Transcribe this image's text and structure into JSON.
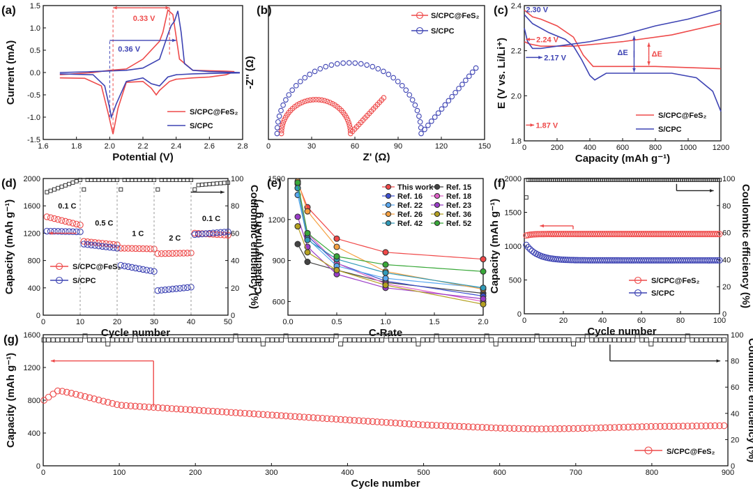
{
  "colors": {
    "red": "#ee4a4a",
    "blue": "#3d43b3",
    "black": "#222222"
  },
  "chart_data": [
    {
      "id": "a",
      "type": "line",
      "panel_label": "(a)",
      "xlabel": "Potential (V)",
      "ylabel": "Current (mA)",
      "xlim": [
        1.6,
        2.8
      ],
      "ylim": [
        -1.5,
        1.5
      ],
      "xticks": [
        1.6,
        1.8,
        2.0,
        2.2,
        2.4,
        2.6,
        2.8
      ],
      "yticks": [
        -1.5,
        -1.0,
        -0.5,
        0.0,
        0.5,
        1.0,
        1.5
      ],
      "annotations": [
        {
          "text": "0.33 V",
          "color": "red"
        },
        {
          "text": "0.36 V",
          "color": "blue"
        }
      ],
      "series": [
        {
          "name": "S/CPC@FeS₂",
          "color": "red",
          "x": [
            1.7,
            1.85,
            1.95,
            1.99,
            2.02,
            2.05,
            2.1,
            2.2,
            2.25,
            2.28,
            2.3,
            2.36,
            2.4,
            2.5,
            2.6,
            2.7,
            2.75,
            2.7,
            2.5,
            2.42,
            2.38,
            2.35,
            2.32,
            2.3,
            2.2,
            2.1,
            2.0,
            1.9,
            1.7
          ],
          "y": [
            -0.12,
            -0.13,
            -0.3,
            -0.9,
            -1.38,
            -0.8,
            -0.22,
            -0.2,
            -0.35,
            -0.5,
            -0.4,
            -0.2,
            -0.15,
            -0.12,
            -0.1,
            -0.05,
            0.02,
            0.03,
            0.05,
            0.3,
            1.3,
            1.4,
            0.9,
            0.7,
            0.3,
            0.08,
            0.05,
            0.0,
            -0.05
          ]
        },
        {
          "name": "S/CPC",
          "color": "blue",
          "x": [
            1.7,
            1.9,
            1.97,
            2.0,
            2.01,
            2.04,
            2.1,
            2.2,
            2.25,
            2.3,
            2.35,
            2.4,
            2.5,
            2.6,
            2.78,
            2.78,
            2.6,
            2.5,
            2.45,
            2.43,
            2.41,
            2.39,
            2.37,
            2.35,
            2.3,
            2.2,
            2.1,
            1.9,
            1.7
          ],
          "y": [
            -0.03,
            -0.05,
            -0.3,
            -0.8,
            -1.0,
            -0.7,
            -0.2,
            -0.12,
            -0.25,
            -0.3,
            -0.1,
            -0.05,
            -0.03,
            -0.02,
            -0.01,
            0.0,
            0.02,
            0.05,
            0.2,
            0.9,
            1.38,
            1.15,
            1.05,
            0.85,
            0.3,
            0.1,
            0.05,
            0.02,
            0.0
          ]
        }
      ]
    },
    {
      "id": "b",
      "type": "scatter",
      "panel_label": "(b)",
      "xlabel": "Z' (Ω)",
      "ylabel": "-Z'' (Ω)",
      "xlim": [
        0,
        150
      ],
      "xticks": [
        0,
        30,
        60,
        90,
        120,
        150
      ],
      "series": [
        {
          "name": "S/CPC@FeS₂",
          "color": "red",
          "arc_center": 33,
          "arc_radius": 24,
          "tail_end": [
            80,
            28
          ]
        },
        {
          "name": "S/CPC",
          "color": "blue",
          "arc_center": 56,
          "arc_radius": 50,
          "tail_end": [
            144,
            48
          ]
        }
      ]
    },
    {
      "id": "c",
      "type": "line",
      "panel_label": "(c)",
      "xlabel": "Capacity (mAh g⁻¹)",
      "ylabel": "E (V vs. Li/Li⁺)",
      "xlim": [
        0,
        1200
      ],
      "ylim": [
        1.8,
        2.4
      ],
      "xticks": [
        0,
        200,
        400,
        600,
        800,
        1000,
        1200
      ],
      "yticks": [
        1.8,
        2.0,
        2.2,
        2.4
      ],
      "annotations": [
        {
          "text": "2.30 V",
          "color": "blue"
        },
        {
          "text": "2.24 V",
          "color": "red"
        },
        {
          "text": "2.17 V",
          "color": "blue"
        },
        {
          "text": "1.87 V",
          "color": "red"
        },
        {
          "text": "ΔE",
          "color": "blue"
        },
        {
          "text": "ΔE",
          "color": "red"
        }
      ],
      "series": [
        {
          "name": "S/CPC@FeS₂",
          "color": "red",
          "discharge": {
            "x": [
              0,
              50,
              100,
              200,
              300,
              360,
              420,
              500,
              800,
              1200
            ],
            "y": [
              2.38,
              2.35,
              2.34,
              2.31,
              2.26,
              2.18,
              2.13,
              2.13,
              2.13,
              2.12
            ]
          },
          "charge": {
            "x": [
              0,
              30,
              100,
              300,
              600,
              900,
              1200
            ],
            "y": [
              2.24,
              2.23,
              2.22,
              2.22,
              2.24,
              2.27,
              2.32
            ]
          }
        },
        {
          "name": "S/CPC",
          "color": "blue",
          "discharge": {
            "x": [
              0,
              50,
              150,
              250,
              300,
              350,
              400,
              430,
              500,
              700,
              900,
              1050,
              1150,
              1200
            ],
            "y": [
              2.36,
              2.32,
              2.28,
              2.25,
              2.22,
              2.16,
              2.09,
              2.07,
              2.1,
              2.1,
              2.1,
              2.08,
              2.02,
              1.93
            ]
          },
          "charge": {
            "x": [
              0,
              20,
              50,
              100,
              200,
              400,
              600,
              800,
              1000,
              1200
            ],
            "y": [
              2.3,
              2.24,
              2.21,
              2.21,
              2.22,
              2.24,
              2.27,
              2.31,
              2.34,
              2.38
            ]
          }
        }
      ]
    },
    {
      "id": "d",
      "type": "scatter",
      "panel_label": "(d)",
      "xlabel": "Cycle number",
      "ylabel": "Capacity (mAh g⁻¹)",
      "y2label": "Coulombic efficiency (%)",
      "xlim": [
        0,
        50
      ],
      "ylim": [
        0,
        2000
      ],
      "y2lim": [
        0,
        100
      ],
      "xticks": [
        0,
        10,
        20,
        30,
        40,
        50
      ],
      "yticks": [
        0,
        400,
        800,
        1200,
        1600,
        2000
      ],
      "y2ticks": [
        0,
        20,
        40,
        60,
        80,
        100
      ],
      "rate_labels": [
        "0.1 C",
        "0.5 C",
        "1 C",
        "2 C",
        "0.1 C"
      ],
      "series": [
        {
          "name": "S/CPC@FeS₂",
          "color": "red",
          "segments": [
            [
              1,
              10,
              1440,
              1320
            ],
            [
              11,
              20,
              1080,
              1030
            ],
            [
              21,
              30,
              980,
              970
            ],
            [
              31,
              40,
              900,
              910
            ],
            [
              41,
              50,
              1200,
              1170
            ]
          ]
        },
        {
          "name": "S/CPC",
          "color": "blue",
          "segments": [
            [
              1,
              10,
              1230,
              1220
            ],
            [
              11,
              20,
              1040,
              980
            ],
            [
              21,
              30,
              730,
              640
            ],
            [
              31,
              40,
              360,
              410
            ],
            [
              41,
              50,
              1180,
              1220
            ]
          ]
        },
        {
          "name": "Coulombic efficiency",
          "color": "black",
          "segments": [
            [
              1,
              10,
              90,
              99
            ],
            [
              11,
              20,
              99,
              99
            ],
            [
              21,
              30,
              99,
              99
            ],
            [
              31,
              40,
              99,
              99
            ],
            [
              41,
              50,
              95,
              97
            ]
          ]
        }
      ]
    },
    {
      "id": "e",
      "type": "line",
      "panel_label": "(e)",
      "xlabel": "C-Rate",
      "ylabel": "Capacity (mAh g⁻¹)",
      "xlim": [
        0,
        2.0
      ],
      "ylim": [
        500,
        1500
      ],
      "xticks": [
        0.0,
        0.5,
        1.0,
        1.5,
        2.0
      ],
      "yticks": [
        600,
        900,
        1200,
        1500
      ],
      "x": [
        0.1,
        0.2,
        0.5,
        1.0,
        2.0
      ],
      "series": [
        {
          "name": "This work",
          "color": "#f04848",
          "values": [
            1470,
            1290,
            1060,
            960,
            910
          ]
        },
        {
          "name": "Ref. 15",
          "color": "#444444",
          "values": [
            1020,
            890,
            830,
            740,
            660
          ]
        },
        {
          "name": "Ref. 16",
          "color": "#3c4fd0",
          "values": [
            1460,
            1080,
            880,
            750,
            640
          ]
        },
        {
          "name": "Ref. 18",
          "color": "#e060c8",
          "values": [
            1430,
            1100,
            880,
            730,
            600
          ]
        },
        {
          "name": "Ref. 22",
          "color": "#5aa8f0",
          "values": [
            1380,
            1060,
            860,
            770,
            700
          ]
        },
        {
          "name": "Ref. 23",
          "color": "#9a3cc8",
          "values": [
            1220,
            1000,
            800,
            700,
            620
          ]
        },
        {
          "name": "Ref. 26",
          "color": "#f5a040",
          "values": [
            1480,
            1260,
            1000,
            820,
            690
          ]
        },
        {
          "name": "Ref. 36",
          "color": "#b4a020",
          "values": [
            1150,
            960,
            830,
            720,
            580
          ]
        },
        {
          "name": "Ref. 42",
          "color": "#309ab8",
          "values": [
            1430,
            1050,
            910,
            810,
            700
          ]
        },
        {
          "name": "Ref. 52",
          "color": "#38a838",
          "values": [
            1470,
            1100,
            930,
            870,
            820
          ]
        }
      ]
    },
    {
      "id": "f",
      "type": "scatter",
      "panel_label": "(f)",
      "xlabel": "Cycle number",
      "ylabel": "Capacity (mAh g⁻¹)",
      "y2label": "Coulombic efficiency (%)",
      "xlim": [
        0,
        100
      ],
      "ylim": [
        0,
        2000
      ],
      "y2lim": [
        0,
        100
      ],
      "xticks": [
        0,
        20,
        40,
        60,
        80,
        100
      ],
      "yticks": [
        0,
        500,
        1000,
        1500,
        2000
      ],
      "y2ticks": [
        0,
        20,
        40,
        60,
        80,
        100
      ],
      "series": [
        {
          "name": "S/CPC@FeS₂",
          "color": "red",
          "start": 1150,
          "level": 1180
        },
        {
          "name": "S/CPC",
          "color": "blue",
          "start": 1060,
          "level": 790
        },
        {
          "name": "Coulombic efficiency",
          "color": "black",
          "start": 86,
          "level": 99
        }
      ]
    },
    {
      "id": "g",
      "type": "scatter",
      "panel_label": "(g)",
      "xlabel": "Cycle number",
      "ylabel": "Capacity (mAh g⁻¹)",
      "y2label": "Coulombic efficiency (%)",
      "xlim": [
        0,
        900
      ],
      "ylim": [
        0,
        1600
      ],
      "y2lim": [
        0,
        100
      ],
      "xticks": [
        0,
        100,
        200,
        300,
        400,
        500,
        600,
        700,
        800,
        900
      ],
      "yticks": [
        0,
        400,
        800,
        1200,
        1600
      ],
      "y2ticks": [
        0,
        20,
        40,
        60,
        80,
        100
      ],
      "series": [
        {
          "name": "S/CPC@FeS₂",
          "color": "red",
          "x": [
            1,
            20,
            40,
            100,
            200,
            300,
            400,
            500,
            600,
            650,
            700,
            800,
            900
          ],
          "y": [
            800,
            920,
            880,
            740,
            680,
            620,
            560,
            500,
            460,
            450,
            455,
            480,
            490
          ]
        },
        {
          "name": "Coulombic efficiency",
          "color": "black",
          "level": 96
        }
      ]
    }
  ]
}
